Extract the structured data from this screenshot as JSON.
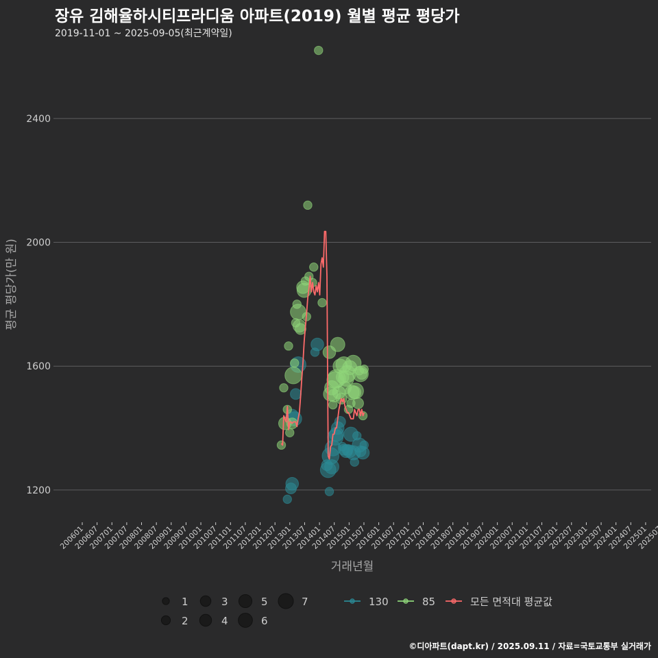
{
  "title": "장유 김해율하시티프라디움 아파트(2019) 월별 평균 평당가",
  "subtitle": "2019-11-01 ~ 2025-09-05(최근계약일)",
  "caption": "©디아파트(dapt.kr) / 2025.09.11 / 자료=국토교통부 실거래가",
  "colors": {
    "background": "#2a2a2b",
    "grid": "#5e5e60",
    "text": "#cfcfcf",
    "series_130": "#2b8a96",
    "series_85": "#8fd67a",
    "series_avg": "#ff6b6b"
  },
  "chart_data": {
    "type": "scatter",
    "xlabel": "거래년월",
    "ylabel": "평균 평당가(만 원)",
    "ylim": [
      1100,
      2650
    ],
    "y_ticks": [
      1200,
      1600,
      2000,
      2400
    ],
    "grid": true,
    "x_ticks": [
      "200601",
      "200607",
      "200701",
      "200707",
      "200801",
      "200807",
      "200901",
      "200907",
      "201001",
      "201007",
      "201101",
      "201107",
      "201201",
      "201207",
      "201301",
      "201307",
      "201401",
      "201407",
      "201501",
      "201507",
      "201601",
      "201607",
      "201701",
      "201707",
      "201801",
      "201807",
      "201901",
      "201907",
      "202001",
      "202007",
      "202101",
      "202107",
      "202201",
      "202207",
      "202301",
      "202307",
      "202401",
      "202407",
      "202501",
      "202507"
    ],
    "legend": {
      "position": "bottom",
      "size_title": "",
      "sizes": [
        1,
        2,
        3,
        4,
        5,
        6,
        7
      ],
      "series": [
        "130",
        "85",
        "모든 면적대 평균값"
      ]
    },
    "series": [
      {
        "name": "130",
        "points": [
          {
            "x": "2020-04",
            "y": 1170,
            "n": 1
          },
          {
            "x": "2020-07",
            "y": 1205,
            "n": 2
          },
          {
            "x": "2020-08",
            "y": 1220,
            "n": 3
          },
          {
            "x": "2020-08",
            "y": 1440,
            "n": 3
          },
          {
            "x": "2020-10",
            "y": 1430,
            "n": 4
          },
          {
            "x": "2020-11",
            "y": 1510,
            "n": 2
          },
          {
            "x": "2021-01",
            "y": 1605,
            "n": 5
          },
          {
            "x": "2022-03",
            "y": 1645,
            "n": 1
          },
          {
            "x": "2022-05",
            "y": 1670,
            "n": 3
          },
          {
            "x": "2023-01",
            "y": 1280,
            "n": 2
          },
          {
            "x": "2023-02",
            "y": 1265,
            "n": 5
          },
          {
            "x": "2023-03",
            "y": 1195,
            "n": 1
          },
          {
            "x": "2023-04",
            "y": 1310,
            "n": 6
          },
          {
            "x": "2023-05",
            "y": 1275,
            "n": 4
          },
          {
            "x": "2023-06",
            "y": 1335,
            "n": 5
          },
          {
            "x": "2023-08",
            "y": 1370,
            "n": 5
          },
          {
            "x": "2023-09",
            "y": 1380,
            "n": 4
          },
          {
            "x": "2023-10",
            "y": 1400,
            "n": 3
          },
          {
            "x": "2023-12",
            "y": 1420,
            "n": 2
          },
          {
            "x": "2024-02",
            "y": 1340,
            "n": 1
          },
          {
            "x": "2024-03",
            "y": 1330,
            "n": 2
          },
          {
            "x": "2024-05",
            "y": 1325,
            "n": 3
          },
          {
            "x": "2024-06",
            "y": 1330,
            "n": 2
          },
          {
            "x": "2024-08",
            "y": 1325,
            "n": 3
          },
          {
            "x": "2024-09",
            "y": 1380,
            "n": 4
          },
          {
            "x": "2024-11",
            "y": 1320,
            "n": 4
          },
          {
            "x": "2024-12",
            "y": 1290,
            "n": 1
          },
          {
            "x": "2025-02",
            "y": 1375,
            "n": 1
          },
          {
            "x": "2025-04",
            "y": 1345,
            "n": 4
          },
          {
            "x": "2025-05",
            "y": 1325,
            "n": 2
          },
          {
            "x": "2025-07",
            "y": 1320,
            "n": 3
          },
          {
            "x": "2025-08",
            "y": 1345,
            "n": 1
          }
        ]
      },
      {
        "name": "85",
        "points": [
          {
            "x": "2019-11",
            "y": 1345,
            "n": 1
          },
          {
            "x": "2020-01",
            "y": 1530,
            "n": 1
          },
          {
            "x": "2020-02",
            "y": 1415,
            "n": 3
          },
          {
            "x": "2020-04",
            "y": 1460,
            "n": 1
          },
          {
            "x": "2020-05",
            "y": 1665,
            "n": 1
          },
          {
            "x": "2020-06",
            "y": 1385,
            "n": 1
          },
          {
            "x": "2020-08",
            "y": 1415,
            "n": 2
          },
          {
            "x": "2020-09",
            "y": 1570,
            "n": 6
          },
          {
            "x": "2020-10",
            "y": 1610,
            "n": 1
          },
          {
            "x": "2020-11",
            "y": 1740,
            "n": 1
          },
          {
            "x": "2020-12",
            "y": 1800,
            "n": 1
          },
          {
            "x": "2021-01",
            "y": 1775,
            "n": 5
          },
          {
            "x": "2021-02",
            "y": 1730,
            "n": 3
          },
          {
            "x": "2021-03",
            "y": 1720,
            "n": 2
          },
          {
            "x": "2021-05",
            "y": 1855,
            "n": 3
          },
          {
            "x": "2021-06",
            "y": 1845,
            "n": 4
          },
          {
            "x": "2021-07",
            "y": 1875,
            "n": 1
          },
          {
            "x": "2021-08",
            "y": 1760,
            "n": 1
          },
          {
            "x": "2021-09",
            "y": 2120,
            "n": 1
          },
          {
            "x": "2021-10",
            "y": 1890,
            "n": 1
          },
          {
            "x": "2022-01",
            "y": 1870,
            "n": 1
          },
          {
            "x": "2022-02",
            "y": 1920,
            "n": 1
          },
          {
            "x": "2022-06",
            "y": 2620,
            "n": 1
          },
          {
            "x": "2022-09",
            "y": 1805,
            "n": 1
          },
          {
            "x": "2023-03",
            "y": 1645,
            "n": 3
          },
          {
            "x": "2023-04",
            "y": 1510,
            "n": 4
          },
          {
            "x": "2023-05",
            "y": 1530,
            "n": 4
          },
          {
            "x": "2023-06",
            "y": 1475,
            "n": 1
          },
          {
            "x": "2023-07",
            "y": 1505,
            "n": 3
          },
          {
            "x": "2023-08",
            "y": 1555,
            "n": 6
          },
          {
            "x": "2023-09",
            "y": 1560,
            "n": 7
          },
          {
            "x": "2023-10",
            "y": 1670,
            "n": 4
          },
          {
            "x": "2023-11",
            "y": 1515,
            "n": 3
          },
          {
            "x": "2023-12",
            "y": 1600,
            "n": 4
          },
          {
            "x": "2024-01",
            "y": 1495,
            "n": 2
          },
          {
            "x": "2024-02",
            "y": 1565,
            "n": 3
          },
          {
            "x": "2024-03",
            "y": 1605,
            "n": 5
          },
          {
            "x": "2024-04",
            "y": 1530,
            "n": 3
          },
          {
            "x": "2024-05",
            "y": 1560,
            "n": 5
          },
          {
            "x": "2024-06",
            "y": 1575,
            "n": 6
          },
          {
            "x": "2024-07",
            "y": 1460,
            "n": 1
          },
          {
            "x": "2024-08",
            "y": 1595,
            "n": 4
          },
          {
            "x": "2024-09",
            "y": 1480,
            "n": 1
          },
          {
            "x": "2024-10",
            "y": 1515,
            "n": 4
          },
          {
            "x": "2024-11",
            "y": 1610,
            "n": 5
          },
          {
            "x": "2024-12",
            "y": 1515,
            "n": 3
          },
          {
            "x": "2025-01",
            "y": 1520,
            "n": 5
          },
          {
            "x": "2025-03",
            "y": 1480,
            "n": 2
          },
          {
            "x": "2025-04",
            "y": 1585,
            "n": 1
          },
          {
            "x": "2025-05",
            "y": 1575,
            "n": 5
          },
          {
            "x": "2025-06",
            "y": 1575,
            "n": 2
          },
          {
            "x": "2025-07",
            "y": 1440,
            "n": 1
          },
          {
            "x": "2025-08",
            "y": 1590,
            "n": 1
          }
        ]
      },
      {
        "name": "모든 면적대 평균값",
        "type": "line",
        "x": [
          "2019-11",
          "2019-12",
          "2020-01",
          "2020-02",
          "2020-03",
          "2020-04",
          "2020-05",
          "2020-06",
          "2020-07",
          "2020-08",
          "2020-09",
          "2020-10",
          "2020-11",
          "2020-12",
          "2021-01",
          "2021-02",
          "2021-03",
          "2021-04",
          "2021-05",
          "2021-06",
          "2021-07",
          "2021-08",
          "2021-09",
          "2021-10",
          "2021-11",
          "2021-12",
          "2022-01",
          "2022-02",
          "2022-03",
          "2022-04",
          "2022-05",
          "2022-06",
          "2022-07",
          "2022-08",
          "2022-09",
          "2022-10",
          "2022-11",
          "2022-12",
          "2023-01",
          "2023-02",
          "2023-03",
          "2023-04",
          "2023-05",
          "2023-06",
          "2023-07",
          "2023-08",
          "2023-09",
          "2023-10",
          "2023-11",
          "2023-12",
          "2024-01",
          "2024-02",
          "2024-03",
          "2024-04",
          "2024-05",
          "2024-06",
          "2024-07",
          "2024-08",
          "2024-09",
          "2024-10",
          "2024-11",
          "2024-12",
          "2025-01",
          "2025-02",
          "2025-03",
          "2025-04",
          "2025-05",
          "2025-06",
          "2025-07",
          "2025-08"
        ],
        "values": [
          1350,
          1345,
          1440,
          1430,
          1420,
          1470,
          1395,
          1420,
          1420,
          1415,
          1420,
          1420,
          1420,
          1405,
          1430,
          1450,
          1500,
          1560,
          1610,
          1680,
          1725,
          1770,
          1820,
          1850,
          1890,
          1840,
          1870,
          1840,
          1830,
          1860,
          1840,
          1870,
          1830,
          1930,
          1950,
          1920,
          2035,
          2035,
          1890,
          1310,
          1300,
          1340,
          1345,
          1380,
          1380,
          1400,
          1400,
          1430,
          1460,
          1480,
          1495,
          1485,
          1495,
          1470,
          1460,
          1450,
          1450,
          1440,
          1430,
          1430,
          1430,
          1460,
          1450,
          1440,
          1460,
          1460,
          1440,
          1460,
          1440,
          1450
        ]
      }
    ]
  }
}
